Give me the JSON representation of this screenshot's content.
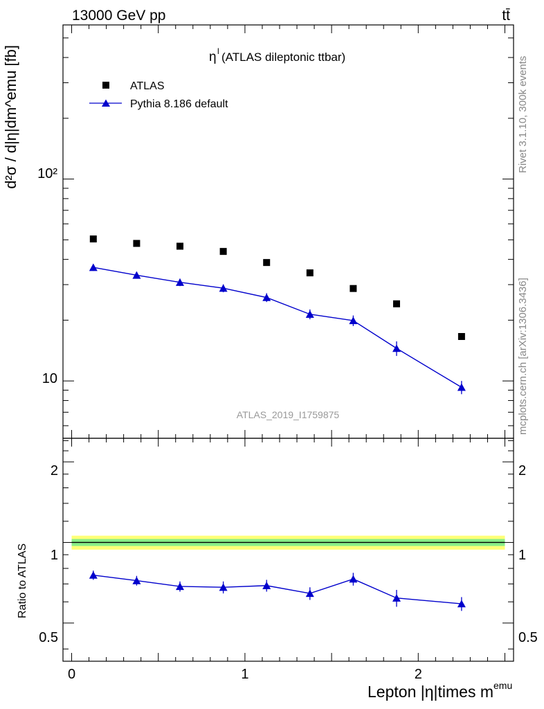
{
  "header": {
    "energy_label": "13000 GeV pp",
    "process_label": "tt̄"
  },
  "side": {
    "rivet_label": "Rivet 3.1.10,  300k events",
    "source_label": "mcplots.cern.ch [arXiv:1306.3436]"
  },
  "colors": {
    "mc": "#0000cc",
    "data": "#000000",
    "band_outer": "#ffff77",
    "band_inner": "#88ee88"
  },
  "chart_data": [
    {
      "type": "scatter",
      "panel": "main",
      "title_main": "η",
      "title_sup": "l",
      "title_rest": " (ATLAS dileptonic ttbar)",
      "analysis_label": "ATLAS_2019_I1759875",
      "ylabel": "d²σ / d|η|dm^emu [fb]",
      "yscale": "log",
      "ylim": [
        5.2,
        580
      ],
      "xlim": [
        -0.05,
        2.55
      ],
      "ytick_labels": [
        "10",
        "10²"
      ],
      "legend_position": "top-left",
      "x": [
        0.125,
        0.375,
        0.625,
        0.875,
        1.125,
        1.375,
        1.625,
        1.875,
        2.25
      ],
      "series": [
        {
          "name": "ATLAS",
          "marker": "square",
          "values": [
            50.5,
            48.0,
            46.5,
            43.8,
            38.6,
            34.3,
            28.7,
            24.1,
            16.6
          ]
        },
        {
          "name": "Pythia 8.186 default",
          "marker": "triangle",
          "line": true,
          "values": [
            36.5,
            33.4,
            30.8,
            28.8,
            25.9,
            21.4,
            19.9,
            14.5,
            9.3
          ],
          "err": [
            1.4,
            1.3,
            1.3,
            1.3,
            1.3,
            1.2,
            1.2,
            1.2,
            0.7
          ]
        }
      ]
    },
    {
      "type": "line",
      "panel": "ratio",
      "ylabel": "Ratio to ATLAS",
      "xlabel": "Lepton |η|times m",
      "xlabel_sup": "emu",
      "ylim": [
        0.36,
        2.45
      ],
      "xlim": [
        -0.05,
        2.55
      ],
      "ytick_labels": [
        "0.5",
        "1",
        "2"
      ],
      "xtick_labels": [
        "0",
        "1",
        "2"
      ],
      "band": {
        "x_range": [
          0.0,
          2.5
        ],
        "outer": [
          0.94,
          1.06
        ],
        "inner": [
          0.97,
          1.03
        ]
      },
      "x": [
        0.125,
        0.375,
        0.625,
        0.875,
        1.125,
        1.375,
        1.625,
        1.875,
        2.25
      ],
      "series": [
        {
          "name": "Pythia 8.186 default / ATLAS",
          "values": [
            0.755,
            0.72,
            0.685,
            0.68,
            0.69,
            0.645,
            0.73,
            0.62,
            0.59
          ],
          "err": [
            0.03,
            0.03,
            0.03,
            0.035,
            0.035,
            0.035,
            0.04,
            0.045,
            0.035
          ]
        }
      ]
    }
  ]
}
